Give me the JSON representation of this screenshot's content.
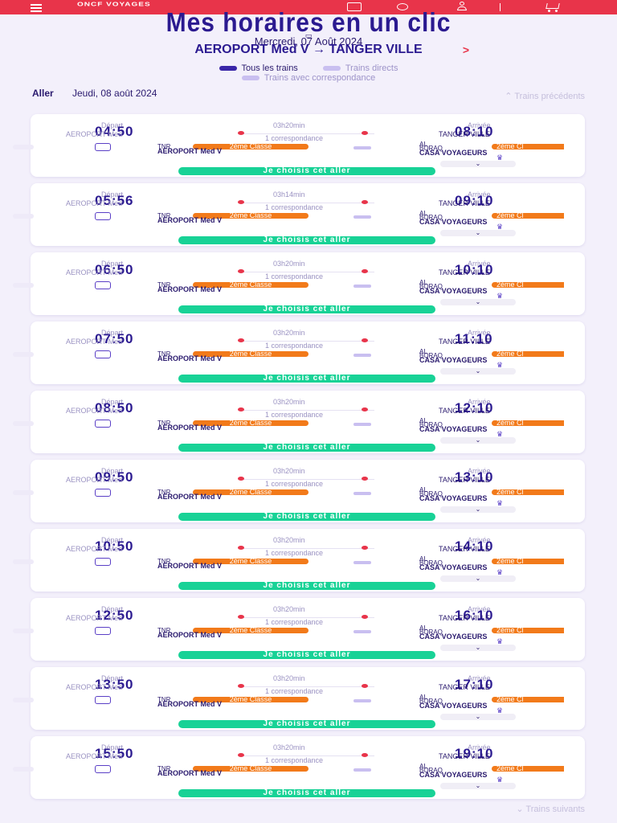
{
  "header": {
    "logo": "ONCF\nVOYAGES"
  },
  "title": "Mes horaires en un clic",
  "search": {
    "date": "Mercredi, 07 Août 2024",
    "route": "AEROPORT Med V → TANGER VILLE",
    "arrow": ">"
  },
  "filters": [
    {
      "label": "Tous les trains",
      "selected": true
    },
    {
      "label": "Trains directs",
      "selected": false
    },
    {
      "label": "Trains avec correspondance",
      "selected": false
    }
  ],
  "outbound": {
    "label": "Aller",
    "date": "Jeudi, 08 août 2024",
    "prev_label": "Trains précédents",
    "next_label": "Trains suivants"
  },
  "labels": {
    "depart": "Départ",
    "arrivee": "Arrivée",
    "tnr": "TNR",
    "al": "AL",
    "ogrado": "BORAQ",
    "class": "2ème Classe",
    "class_short": "2ème Cl",
    "choose": "Je choisis cet aller"
  },
  "trips": [
    {
      "dep": "04:50",
      "dep_station": "AEROPORT Med",
      "duration": "03h20min",
      "corr": "1 correspondance",
      "arr": "08:10",
      "arr_station": "TANGER VILLE",
      "seg_station": "AEROPORT Med V",
      "dest2": "CASA VOYAGEURS"
    },
    {
      "dep": "05:56",
      "dep_station": "AEROPORT Med",
      "duration": "03h14min",
      "corr": "1 correspondance",
      "arr": "09:10",
      "arr_station": "TANGER VILLE",
      "seg_station": "AEROPORT Med V",
      "dest2": "CASA VOYAGEURS"
    },
    {
      "dep": "06:50",
      "dep_station": "AEROPORT Med",
      "duration": "03h20min",
      "corr": "1 correspondance",
      "arr": "10:10",
      "arr_station": "TANGER VILLE",
      "seg_station": "AEROPORT Med V",
      "dest2": "CASA VOYAGEURS"
    },
    {
      "dep": "07:50",
      "dep_station": "AEROPORT Med",
      "duration": "03h20min",
      "corr": "1 correspondance",
      "arr": "11:10",
      "arr_station": "TANGER VILLE",
      "seg_station": "AEROPORT Med V",
      "dest2": "CASA VOYAGEURS"
    },
    {
      "dep": "08:50",
      "dep_station": "AEROPORT Med",
      "duration": "03h20min",
      "corr": "1 correspondance",
      "arr": "12:10",
      "arr_station": "TANGER VILLE",
      "seg_station": "AEROPORT Med V",
      "dest2": "CASA VOYAGEURS"
    },
    {
      "dep": "09:50",
      "dep_station": "AEROPORT Med",
      "duration": "03h20min",
      "corr": "1 correspondance",
      "arr": "13:10",
      "arr_station": "TANGER VILLE",
      "seg_station": "AEROPORT Med V",
      "dest2": "CASA VOYAGEURS"
    },
    {
      "dep": "10:50",
      "dep_station": "AEROPORT Med",
      "duration": "03h20min",
      "corr": "1 correspondance",
      "arr": "14:10",
      "arr_station": "TANGER VILLE",
      "seg_station": "AEROPORT Med V",
      "dest2": "CASA VOYAGEURS"
    },
    {
      "dep": "12:50",
      "dep_station": "AEROPORT Med",
      "duration": "03h20min",
      "corr": "1 correspondance",
      "arr": "16:10",
      "arr_station": "TANGER VILLE",
      "seg_station": "AEROPORT Med V",
      "dest2": "CASA VOYAGEURS"
    },
    {
      "dep": "13:50",
      "dep_station": "AEROPORT Med",
      "duration": "03h20min",
      "corr": "1 correspondance",
      "arr": "17:10",
      "arr_station": "TANGER VILLE",
      "seg_station": "AEROPORT Med V",
      "dest2": "CASA VOYAGEURS"
    },
    {
      "dep": "15:50",
      "dep_station": "AEROPORT Med",
      "duration": "03h20min",
      "corr": "1 correspondance",
      "arr": "19:10",
      "arr_station": "TANGER VILLE",
      "seg_station": "AEROPORT Med V",
      "dest2": "CASA VOYAGEURS"
    }
  ],
  "colors": {
    "brand_red": "#e8344a",
    "primary": "#2b1a90",
    "badge_orange": "#f27a1a",
    "cta_green": "#18d296"
  }
}
